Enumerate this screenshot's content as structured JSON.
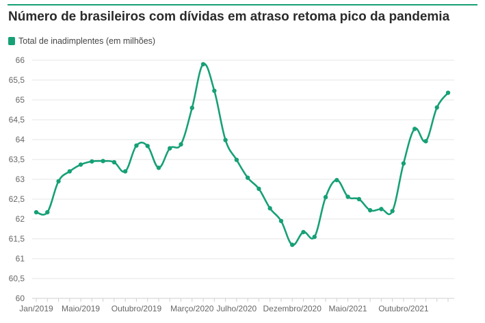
{
  "chart_data": {
    "type": "line",
    "title": "Número de brasileiros com dívidas em atraso retoma pico da pandemia",
    "xlabel": "",
    "ylabel": "",
    "ylim": [
      60,
      66
    ],
    "yticks": [
      "60",
      "60,5",
      "61",
      "61,5",
      "62",
      "62,5",
      "63",
      "63,5",
      "64",
      "64,5",
      "65",
      "65,5",
      "66"
    ],
    "xticks": [
      {
        "label": "Jan/2019",
        "index": 0
      },
      {
        "label": "Maio/2019",
        "index": 4
      },
      {
        "label": "Outubro/2019",
        "index": 9
      },
      {
        "label": "Março/2020",
        "index": 14
      },
      {
        "label": "Julho/2020",
        "index": 18
      },
      {
        "label": "Dezembro/2020",
        "index": 23
      },
      {
        "label": "Maio/2021",
        "index": 28
      },
      {
        "label": "Outubro/2021",
        "index": 33
      }
    ],
    "grid": true,
    "legend_position": "top-left",
    "series": [
      {
        "name": "Total de inadimplentes (em milhões)",
        "color": "#16a076",
        "values": [
          62.17,
          62.17,
          62.95,
          63.2,
          63.37,
          63.45,
          63.46,
          63.43,
          63.2,
          63.85,
          63.84,
          63.29,
          63.78,
          63.88,
          64.8,
          65.9,
          65.23,
          63.99,
          63.49,
          63.04,
          62.76,
          62.27,
          61.95,
          61.35,
          61.67,
          61.55,
          62.55,
          62.98,
          62.56,
          62.5,
          62.22,
          62.25,
          62.2,
          63.4,
          64.27,
          63.96,
          64.81,
          65.18
        ]
      }
    ]
  }
}
